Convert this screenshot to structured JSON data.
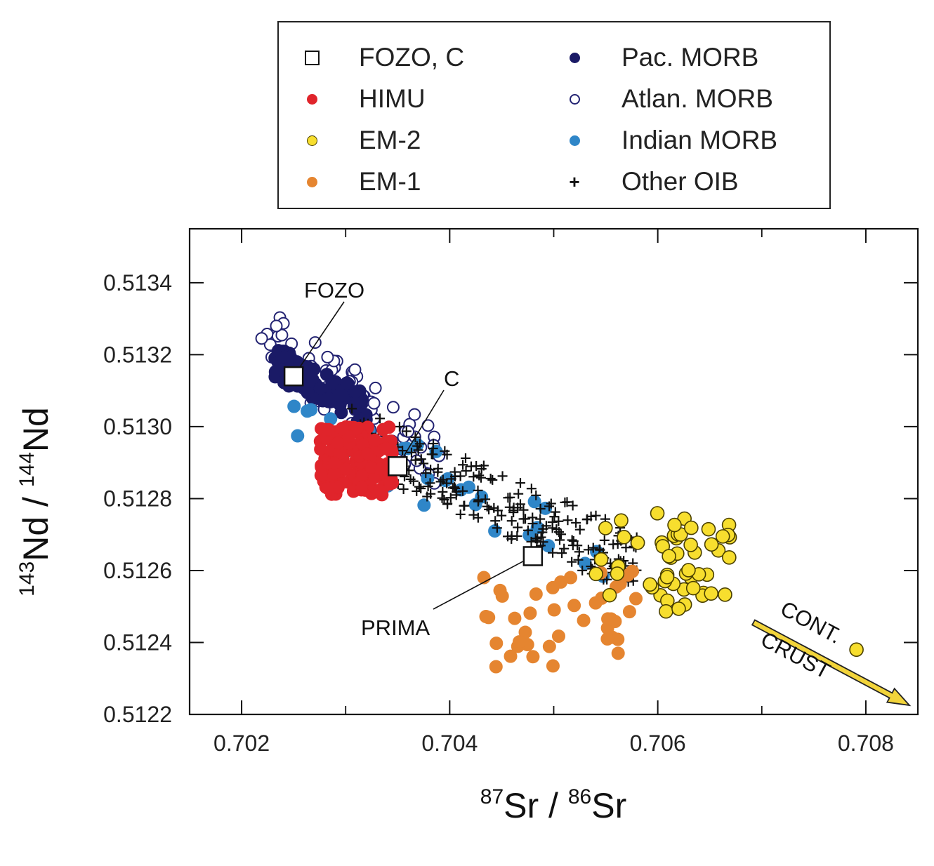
{
  "legend": {
    "items": [
      {
        "label": "FOZO, C",
        "symbol": "square",
        "color": "#ffffff",
        "stroke": "#111111"
      },
      {
        "label": "HIMU",
        "symbol": "dot",
        "color": "#e0242b",
        "stroke": "#e0242b"
      },
      {
        "label": "EM-2",
        "symbol": "dot",
        "color": "#f7de2e",
        "stroke": "#4a4000"
      },
      {
        "label": "EM-1",
        "symbol": "dot",
        "color": "#e58530",
        "stroke": "#e58530"
      },
      {
        "label": "Pac. MORB",
        "symbol": "dot",
        "color": "#1a1a66",
        "stroke": "#1a1a66"
      },
      {
        "label": "Atlan. MORB",
        "symbol": "dot-open",
        "color": "#ffffff",
        "stroke": "#232372"
      },
      {
        "label": "Indian MORB",
        "symbol": "dot",
        "color": "#2f86c8",
        "stroke": "#2f86c8"
      },
      {
        "label": "Other OIB",
        "symbol": "plus",
        "color": "#111111",
        "stroke": "#111111"
      }
    ]
  },
  "chart_data": {
    "type": "scatter",
    "title": "",
    "xlabel": {
      "mass": "87",
      "element": "Sr",
      "denom_mass": "86",
      "denom_element": "Sr"
    },
    "ylabel": {
      "mass": "143",
      "element": "Nd",
      "denom_mass": "144",
      "denom_element": "Nd"
    },
    "xlim": [
      0.7015,
      0.7085
    ],
    "ylim": [
      0.5122,
      0.51355
    ],
    "x_ticks": [
      "0.702",
      "0.704",
      "0.706",
      "0.708"
    ],
    "y_ticks": [
      "0.5122",
      "0.5124",
      "0.5126",
      "0.5128",
      "0.5130",
      "0.5132",
      "0.5134"
    ],
    "grid": false,
    "legend_position": "top, outside plot",
    "clouds": [
      {
        "name": "Atlan. MORB",
        "x_range": [
          0.7021,
          0.7039
        ],
        "y_range": [
          0.51283,
          0.51335
        ],
        "count": 85,
        "trend": -0.8
      },
      {
        "name": "Pac. MORB",
        "x_range": [
          0.7023,
          0.7032
        ],
        "y_range": [
          0.51298,
          0.51325
        ],
        "count": 75,
        "trend": -0.6
      },
      {
        "name": "Indian MORB",
        "x_range": [
          0.7025,
          0.7055
        ],
        "y_range": [
          0.51258,
          0.5131
        ],
        "count": 30,
        "trend": -0.8
      },
      {
        "name": "Other OIB",
        "x_range": [
          0.703,
          0.7058
        ],
        "y_range": [
          0.51255,
          0.51305
        ],
        "count": 230,
        "trend": -0.85
      },
      {
        "name": "HIMU",
        "x_range": [
          0.70275,
          0.70345
        ],
        "y_range": [
          0.51281,
          0.513
        ],
        "count": 150,
        "trend": 0
      },
      {
        "name": "EM-1",
        "x_range": [
          0.7043,
          0.7058
        ],
        "y_range": [
          0.51232,
          0.5126
        ],
        "count": 42,
        "trend": 0
      },
      {
        "name": "EM-2",
        "x_range": [
          0.7054,
          0.7067
        ],
        "y_range": [
          0.51248,
          0.51276
        ],
        "count": 55,
        "trend": 0
      }
    ],
    "extra_points": [
      {
        "name": "EM-2",
        "x": 0.70791,
        "y": 0.51238
      }
    ],
    "labeled_points": [
      {
        "label": "FOZO",
        "x": 0.7025,
        "y": 0.51314
      },
      {
        "label": "C",
        "x": 0.7035,
        "y": 0.51289
      },
      {
        "label": "PRIMA",
        "x": 0.7048,
        "y": 0.51264
      }
    ],
    "annotations": {
      "arrow_label_line1": "CONT.",
      "arrow_label_line2": "CRUST"
    },
    "colors": {
      "arrow_fill": "#f2d43a",
      "arrow_stroke": "#222222"
    }
  }
}
